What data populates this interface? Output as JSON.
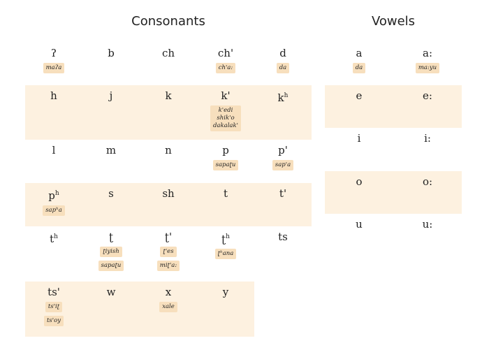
{
  "titles": {
    "consonants": "Consonants",
    "vowels": "Vowels"
  },
  "colors": {
    "band": "#fdf1e0",
    "example_tag": "#f7dfbd",
    "text": "#222222"
  },
  "consonants": [
    [
      {
        "glyph": "ʔ",
        "examples": [
          [
            "maʔa"
          ]
        ]
      },
      {
        "glyph": "b",
        "examples": []
      },
      {
        "glyph": "ch",
        "examples": []
      },
      {
        "glyph": "ch'",
        "examples": [
          [
            "ch'a:"
          ]
        ]
      },
      {
        "glyph": "d",
        "examples": [
          [
            "da"
          ]
        ]
      }
    ],
    [
      {
        "glyph": "h",
        "examples": []
      },
      {
        "glyph": "j",
        "examples": []
      },
      {
        "glyph": "k",
        "examples": []
      },
      {
        "glyph": "k'",
        "examples": [
          [
            "k'edi",
            "shik'o",
            "dakalak'"
          ]
        ]
      },
      {
        "glyph": "k",
        "sup": "h",
        "examples": []
      }
    ],
    [
      {
        "glyph": "l",
        "examples": []
      },
      {
        "glyph": "m",
        "examples": []
      },
      {
        "glyph": "n",
        "examples": []
      },
      {
        "glyph": "p",
        "examples": [
          [
            "sapaʈu"
          ]
        ]
      },
      {
        "glyph": "p'",
        "examples": [
          [
            "sap'a"
          ]
        ]
      }
    ],
    [
      {
        "glyph": "p",
        "sup": "h",
        "examples": [
          [
            "sapʰa"
          ]
        ]
      },
      {
        "glyph": "s",
        "examples": []
      },
      {
        "glyph": "sh",
        "examples": []
      },
      {
        "glyph": "t",
        "examples": []
      },
      {
        "glyph": "t'",
        "examples": []
      }
    ],
    [
      {
        "glyph": "t",
        "sup": "h",
        "examples": []
      },
      {
        "glyph": "ʈ",
        "examples": [
          [
            "ʈiyish"
          ],
          [
            "sapaʈu"
          ]
        ]
      },
      {
        "glyph": "ʈ'",
        "examples": [
          [
            "ʈ'es"
          ],
          [
            "miʈ'a:"
          ]
        ]
      },
      {
        "glyph": "ʈ",
        "sup": "h",
        "examples": [
          [
            "ʈʰana"
          ]
        ]
      },
      {
        "glyph": "ts",
        "examples": []
      }
    ],
    [
      {
        "glyph": "ts'",
        "examples": [
          [
            "ts'iʈ"
          ],
          [
            "ts'oy"
          ]
        ]
      },
      {
        "glyph": "w",
        "examples": []
      },
      {
        "glyph": "x",
        "examples": [
          [
            "xale"
          ]
        ]
      },
      {
        "glyph": "y",
        "examples": []
      }
    ]
  ],
  "vowels": [
    [
      {
        "glyph": "a",
        "examples": [
          [
            "da"
          ]
        ]
      },
      {
        "glyph": "a:",
        "examples": [
          [
            "ma:yu"
          ]
        ]
      }
    ],
    [
      {
        "glyph": "e",
        "examples": []
      },
      {
        "glyph": "e:",
        "examples": []
      }
    ],
    [
      {
        "glyph": "i",
        "examples": []
      },
      {
        "glyph": "i:",
        "examples": []
      }
    ],
    [
      {
        "glyph": "o",
        "examples": []
      },
      {
        "glyph": "o:",
        "examples": []
      }
    ],
    [
      {
        "glyph": "u",
        "examples": []
      },
      {
        "glyph": "u:",
        "examples": []
      }
    ]
  ]
}
